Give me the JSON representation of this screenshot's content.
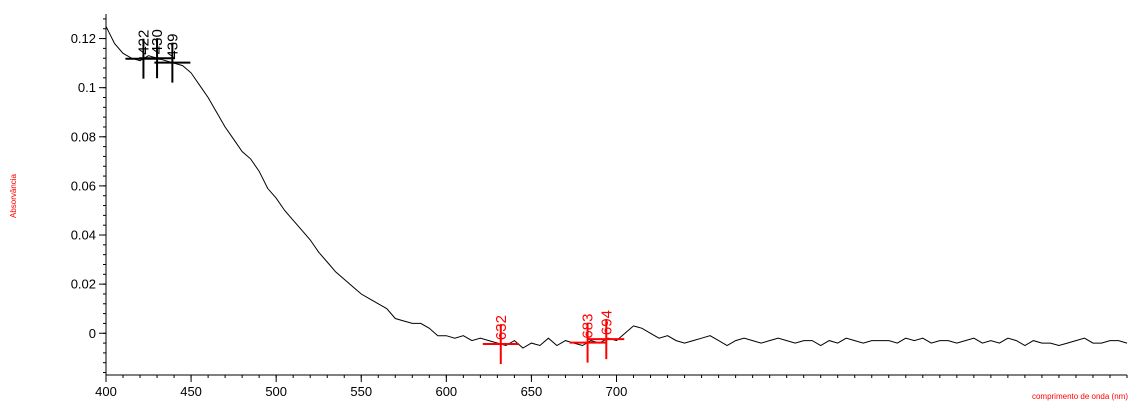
{
  "chart_data": {
    "type": "line",
    "title": "",
    "xlabel": "comprimento de onda (nm)",
    "ylabel": "Absorvância",
    "xlim": [
      400,
      1000
    ],
    "ylim": [
      -0.017,
      0.13
    ],
    "x_ticks": [
      400,
      450,
      500,
      550,
      600,
      650,
      700
    ],
    "x_tick_labels": [
      "400",
      "450",
      "500",
      "550",
      "600",
      "650",
      "700"
    ],
    "y_ticks": [
      0,
      0.02,
      0.04,
      0.06,
      0.08,
      0.1,
      0.12
    ],
    "y_tick_labels": [
      "0",
      "0.02",
      "0.04",
      "0.06",
      "0.08",
      "0.1",
      "0.12"
    ],
    "grid": false,
    "series": [
      {
        "color": "#000000",
        "x": [
          400,
          405,
          410,
          415,
          420,
          425,
          430,
          435,
          440,
          445,
          450,
          455,
          460,
          465,
          470,
          475,
          480,
          485,
          490,
          495,
          500,
          505,
          510,
          515,
          520,
          525,
          530,
          535,
          540,
          545,
          550,
          555,
          560,
          565,
          570,
          575,
          580,
          585,
          590,
          595,
          600,
          605,
          610,
          615,
          620,
          625,
          630,
          635,
          640,
          645,
          650,
          655,
          660,
          665,
          670,
          675,
          680,
          685,
          690,
          695,
          700,
          705,
          710,
          715,
          720,
          725,
          730,
          735,
          740,
          745,
          750,
          755,
          760,
          765,
          770,
          775,
          780,
          785,
          790,
          795,
          800,
          805,
          810,
          815,
          820,
          825,
          830,
          835,
          840,
          845,
          850,
          855,
          860,
          865,
          870,
          875,
          880,
          885,
          890,
          895,
          900,
          905,
          910,
          915,
          920,
          925,
          930,
          935,
          940,
          945,
          950,
          955,
          960,
          965,
          970,
          975,
          980,
          985,
          990,
          995,
          1000
        ],
        "y": [
          0.125,
          0.118,
          0.114,
          0.112,
          0.111,
          0.113,
          0.112,
          0.111,
          0.11,
          0.109,
          0.106,
          0.101,
          0.096,
          0.09,
          0.084,
          0.079,
          0.074,
          0.071,
          0.066,
          0.059,
          0.055,
          0.05,
          0.046,
          0.042,
          0.038,
          0.033,
          0.029,
          0.025,
          0.022,
          0.019,
          0.016,
          0.014,
          0.012,
          0.01,
          0.006,
          0.005,
          0.004,
          0.004,
          0.002,
          -0.001,
          -0.001,
          -0.002,
          -0.001,
          -0.003,
          -0.002,
          -0.003,
          -0.004,
          -0.005,
          -0.003,
          -0.006,
          -0.004,
          -0.005,
          -0.002,
          -0.005,
          -0.003,
          -0.004,
          -0.005,
          -0.003,
          -0.004,
          -0.002,
          -0.003,
          0.0,
          0.003,
          0.002,
          0.0,
          -0.002,
          -0.001,
          -0.003,
          -0.004,
          -0.003,
          -0.002,
          -0.001,
          -0.003,
          -0.005,
          -0.003,
          -0.002,
          -0.003,
          -0.004,
          -0.003,
          -0.002,
          -0.003,
          -0.004,
          -0.003,
          -0.003,
          -0.005,
          -0.003,
          -0.004,
          -0.002,
          -0.003,
          -0.004,
          -0.003,
          -0.003,
          -0.003,
          -0.004,
          -0.002,
          -0.003,
          -0.002,
          -0.004,
          -0.003,
          -0.003,
          -0.004,
          -0.003,
          -0.002,
          -0.004,
          -0.003,
          -0.004,
          -0.002,
          -0.003,
          -0.005,
          -0.003,
          -0.004,
          -0.004,
          -0.005,
          -0.004,
          -0.003,
          -0.002,
          -0.004,
          -0.004,
          -0.003,
          -0.003,
          -0.004
        ]
      }
    ],
    "peaks": [
      {
        "x": 422,
        "label": "422",
        "color": "#000000"
      },
      {
        "x": 430,
        "label": "430",
        "color": "#000000"
      },
      {
        "x": 439,
        "label": "439",
        "color": "#000000"
      },
      {
        "x": 632,
        "label": "632",
        "color": "#ff0000"
      },
      {
        "x": 683,
        "label": "683",
        "color": "#ff0000"
      },
      {
        "x": 694,
        "label": "694",
        "color": "#ff0000"
      }
    ]
  }
}
